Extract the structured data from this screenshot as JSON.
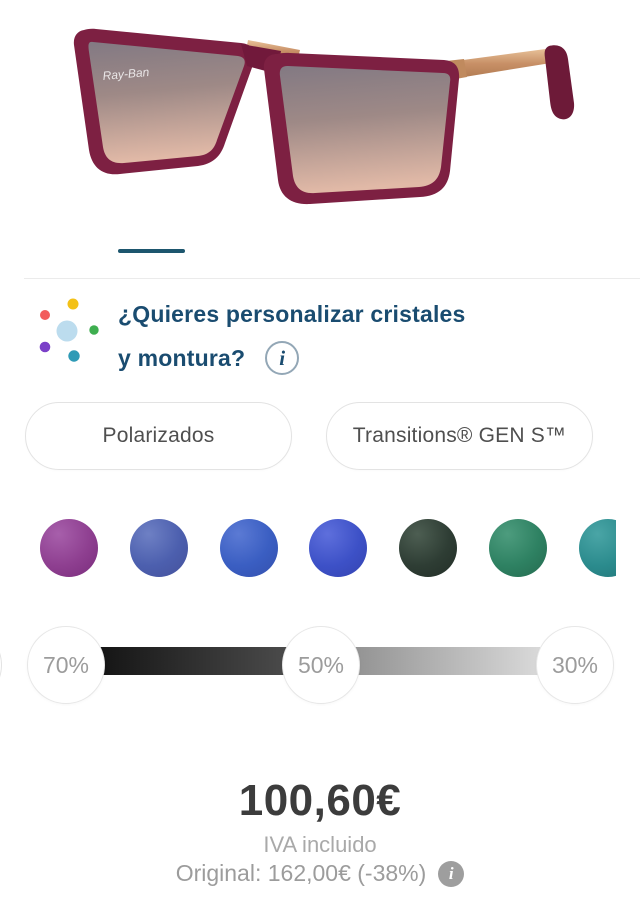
{
  "accent_color": "#1a4c70",
  "carousel": {
    "indicator_color": "#1d566e"
  },
  "product_image": {
    "brand_script": "Ray-Ban",
    "frame_color": "#7d2042",
    "temple_gold_color": "#c89067",
    "ear_tip_color": "#6d1a38"
  },
  "header": {
    "title_line1": "¿Quieres personalizar cristales",
    "title_line2": "y montura?",
    "info_icon_glyph": "i",
    "dots": [
      {
        "name": "red",
        "color": "#f25c5c"
      },
      {
        "name": "yellow",
        "color": "#f3c117"
      },
      {
        "name": "light-blue",
        "color": "#bcdcee"
      },
      {
        "name": "green",
        "color": "#3eae4f"
      },
      {
        "name": "purple",
        "color": "#7b40c8"
      },
      {
        "name": "teal",
        "color": "#2e9ab6"
      }
    ]
  },
  "lens_type_buttons": [
    {
      "label": "Polarizados"
    },
    {
      "label": "Transitions® GEN S™"
    }
  ],
  "lens_colors": [
    {
      "name": "purple",
      "base": "#8e3f90",
      "highlight": "#a75fab",
      "shade": "#7a2c7c"
    },
    {
      "name": "slate-blue",
      "base": "#4c5fae",
      "highlight": "#6e80c4",
      "shade": "#45519b"
    },
    {
      "name": "blue",
      "base": "#3a5ec2",
      "highlight": "#5b7ad4",
      "shade": "#3450ad"
    },
    {
      "name": "royal-blue",
      "base": "#3d51c7",
      "highlight": "#5e6fdc",
      "shade": "#3443b0"
    },
    {
      "name": "dark-green",
      "base": "#2e3d34",
      "highlight": "#4d5e52",
      "shade": "#232e27"
    },
    {
      "name": "green",
      "base": "#2e8162",
      "highlight": "#4d9c7e",
      "shade": "#256a4f"
    },
    {
      "name": "teal",
      "base": "#2b8b8d",
      "highlight": "#4aa5a6",
      "shade": "#227477"
    }
  ],
  "tint_slider": {
    "stops": [
      {
        "label": "70%"
      },
      {
        "label": "50%"
      },
      {
        "label": "30%"
      }
    ],
    "bar_gradient": [
      "#151515",
      "#4a4a4a",
      "#909090",
      "#d9d9d9"
    ]
  },
  "price": {
    "current": "100,60€",
    "tax_note": "IVA incluido",
    "original_note": "Original: 162,00€ (-38%)",
    "info_icon_glyph": "i"
  }
}
